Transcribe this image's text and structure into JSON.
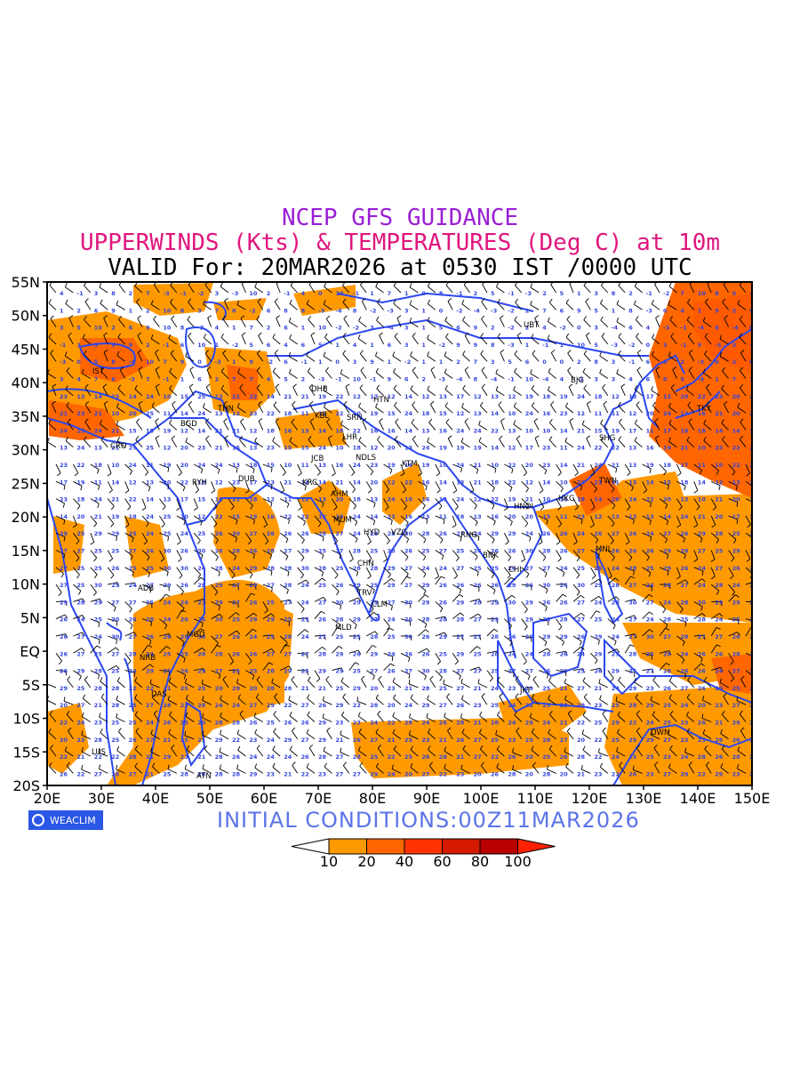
{
  "titles": {
    "line1": "NCEP GFS GUIDANCE",
    "line2": "UPPERWINDS (Kts) & TEMPERATURES (Deg C) at 10m",
    "line3": "VALID For: 20MAR2026 at 0530 IST /0000 UTC"
  },
  "colors": {
    "title1": "#9a1fd6",
    "title2": "#e0157d",
    "coast": "#2b47f0",
    "barb": "#000000",
    "temp_label": "#3344dd",
    "logo_bg": "#2b57e6",
    "initial": "#5b74e8"
  },
  "axes": {
    "lat_labels": [
      "55N",
      "50N",
      "45N",
      "40N",
      "35N",
      "30N",
      "25N",
      "20N",
      "15N",
      "10N",
      "5N",
      "EQ",
      "5S",
      "10S",
      "15S",
      "20S"
    ],
    "lon_labels": [
      "20E",
      "30E",
      "40E",
      "50E",
      "60E",
      "70E",
      "80E",
      "90E",
      "100E",
      "110E",
      "120E",
      "130E",
      "140E",
      "150E"
    ]
  },
  "stations": [
    "UBT",
    "BJG",
    "DHB",
    "HTN",
    "KBL",
    "SRN",
    "TKY",
    "IST",
    "BGD",
    "THN",
    "CRO",
    "LHR",
    "NDLS",
    "SHG",
    "JCB",
    "KTM",
    "RYH",
    "DUB",
    "KRC",
    "AHM",
    "TWN",
    "HKG",
    "HNOI",
    "MUM",
    "HYD",
    "VZG",
    "RNG",
    "MNL",
    "BNK",
    "CHN",
    "CHI",
    "ADB",
    "TRV",
    "CLM",
    "MGD",
    "MLD",
    "NRB",
    "JKT",
    "DAS",
    "DWN",
    "LUS",
    "ATN"
  ],
  "legend": {
    "ticks": [
      "10",
      "20",
      "40",
      "60",
      "80",
      "100"
    ],
    "colors": [
      "#ffffff",
      "#ff9900",
      "#ff6600",
      "#ff3300",
      "#d61a00",
      "#b80000",
      "#ff2200"
    ]
  },
  "logo_text": "WEACLIM",
  "initial_conditions": "INITIAL CONDITIONS:00Z11MAR2026"
}
